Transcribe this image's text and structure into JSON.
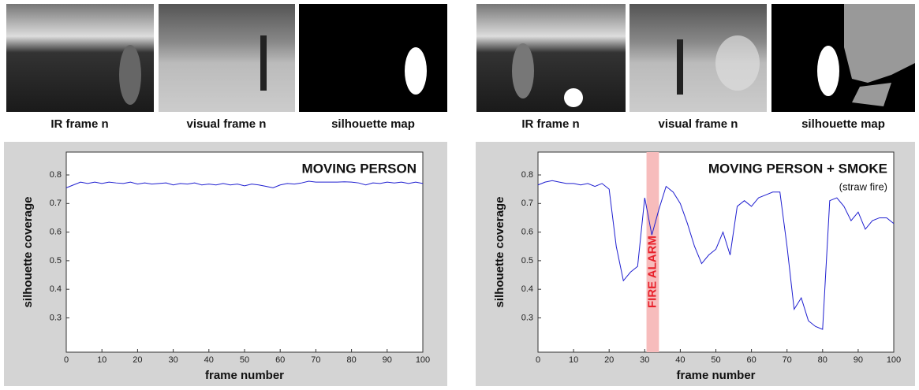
{
  "image_captions": [
    [
      "IR frame n",
      "visual frame n",
      "silhouette map"
    ],
    [
      "IR frame n",
      "visual frame n",
      "silhouette map"
    ]
  ],
  "chart_data": [
    {
      "type": "line",
      "title": "MOVING PERSON",
      "xlabel": "frame number",
      "ylabel": "silhouette coverage",
      "x": [
        0,
        2,
        4,
        6,
        8,
        10,
        12,
        14,
        16,
        18,
        20,
        22,
        24,
        26,
        28,
        30,
        32,
        34,
        36,
        38,
        40,
        42,
        44,
        46,
        48,
        50,
        52,
        54,
        56,
        58,
        60,
        62,
        64,
        66,
        68,
        70,
        72,
        74,
        76,
        78,
        80,
        82,
        84,
        86,
        88,
        90,
        92,
        94,
        96,
        98,
        100
      ],
      "series": [
        {
          "name": "silhouette coverage",
          "color": "#1f1fd0",
          "values": [
            0.755,
            0.765,
            0.775,
            0.77,
            0.775,
            0.77,
            0.775,
            0.772,
            0.77,
            0.775,
            0.768,
            0.772,
            0.768,
            0.77,
            0.772,
            0.765,
            0.77,
            0.768,
            0.772,
            0.765,
            0.768,
            0.765,
            0.77,
            0.765,
            0.768,
            0.762,
            0.768,
            0.765,
            0.76,
            0.755,
            0.765,
            0.77,
            0.768,
            0.772,
            0.778,
            0.775,
            0.775,
            0.775,
            0.775,
            0.776,
            0.775,
            0.772,
            0.765,
            0.772,
            0.77,
            0.775,
            0.772,
            0.775,
            0.77,
            0.775,
            0.77
          ]
        }
      ],
      "xlim": [
        0,
        100
      ],
      "ylim": [
        0.18,
        0.88
      ],
      "xticks": [
        0,
        10,
        20,
        30,
        40,
        50,
        60,
        70,
        80,
        90,
        100
      ],
      "yticks": [
        0.3,
        0.4,
        0.5,
        0.6,
        0.7,
        0.8
      ]
    },
    {
      "type": "line",
      "title": "MOVING PERSON + SMOKE",
      "subtitle": "(straw fire)",
      "xlabel": "frame number",
      "ylabel": "silhouette coverage",
      "alarm_span": [
        30.5,
        34
      ],
      "alarm_label": "FIRE ALARM",
      "alarm_color": "#f7bcbc",
      "x": [
        0,
        2,
        4,
        6,
        8,
        10,
        12,
        14,
        16,
        18,
        20,
        22,
        24,
        26,
        28,
        30,
        32,
        34,
        36,
        38,
        40,
        42,
        44,
        46,
        48,
        50,
        52,
        54,
        56,
        58,
        60,
        62,
        64,
        66,
        68,
        70,
        72,
        74,
        76,
        78,
        80,
        82,
        84,
        86,
        88,
        90,
        92,
        94,
        96,
        98,
        100
      ],
      "series": [
        {
          "name": "silhouette coverage",
          "color": "#1f1fd0",
          "values": [
            0.765,
            0.775,
            0.78,
            0.775,
            0.77,
            0.77,
            0.765,
            0.77,
            0.76,
            0.77,
            0.75,
            0.55,
            0.43,
            0.46,
            0.48,
            0.72,
            0.59,
            0.68,
            0.76,
            0.74,
            0.7,
            0.63,
            0.55,
            0.49,
            0.52,
            0.54,
            0.6,
            0.52,
            0.69,
            0.71,
            0.69,
            0.72,
            0.73,
            0.74,
            0.74,
            0.55,
            0.33,
            0.37,
            0.29,
            0.27,
            0.26,
            0.71,
            0.72,
            0.69,
            0.64,
            0.67,
            0.61,
            0.64,
            0.65,
            0.65,
            0.63
          ]
        }
      ],
      "xlim": [
        0,
        100
      ],
      "ylim": [
        0.18,
        0.88
      ],
      "xticks": [
        0,
        10,
        20,
        30,
        40,
        50,
        60,
        70,
        80,
        90,
        100
      ],
      "yticks": [
        0.3,
        0.4,
        0.5,
        0.6,
        0.7,
        0.8
      ]
    }
  ]
}
